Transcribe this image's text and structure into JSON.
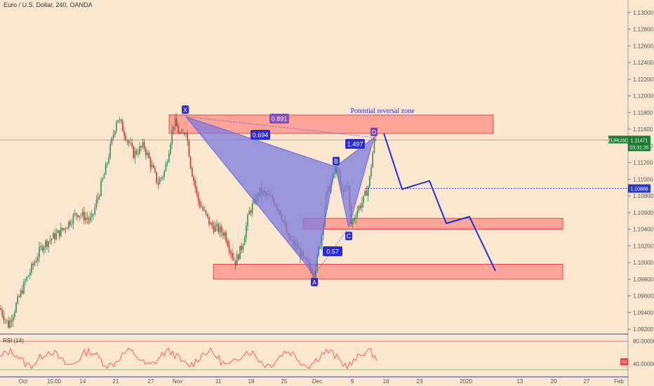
{
  "header": {
    "symbol_title": "Euro / U.S. Dollar, 240, OANDA"
  },
  "colors": {
    "background": "#fbe7cf",
    "candle_up": "#2e8b57",
    "candle_down": "#c0392b",
    "pattern_fill": "#7b7be0",
    "pattern_stroke": "#6a6ad8",
    "zone_fill": "#ff6b6b",
    "projection": "#1f2fd6",
    "price_badge": "#1e7b34",
    "level_badge": "#2b3ac8",
    "rsi_line": "#ff5a5a"
  },
  "chart_data": {
    "type": "candlestick",
    "symbol": "EURUSD",
    "timeframe": "240",
    "y_range": [
      1.0915,
      1.1315
    ],
    "y_ticks": [
      "1.13000",
      "1.12800",
      "1.12600",
      "1.12400",
      "1.12200",
      "1.12000",
      "1.11800",
      "1.11600",
      "1.11400",
      "1.11200",
      "1.11000",
      "1.10800",
      "1.10600",
      "1.10400",
      "1.10200",
      "1.10000",
      "1.09800",
      "1.09600",
      "1.09400",
      "1.09200"
    ],
    "x_ticks": [
      "Oct",
      "15:00",
      "14",
      "21",
      "27",
      "Nov",
      "11",
      "18",
      "25",
      "Dec",
      "9",
      "16",
      "23",
      "2020",
      "13",
      "20",
      "27",
      "Feb"
    ],
    "key_prices": {
      "start": 1.094,
      "october_high": 1.1178,
      "X": 1.1175,
      "A": 1.0985,
      "B": 1.1115,
      "C": 1.1042,
      "D": 1.115,
      "current": 1.11471
    },
    "harmonic_pattern": {
      "points": [
        "X",
        "A",
        "B",
        "C",
        "D"
      ],
      "ratios": {
        "XD": "0.891",
        "XB": "0.694",
        "AC": "0.57",
        "BD": "1.497"
      }
    },
    "zones": [
      {
        "name": "Potential reversal zone",
        "from": 1.1155,
        "to": 1.1177
      },
      {
        "name": "",
        "from": 1.104,
        "to": 1.1053
      },
      {
        "name": "",
        "from": 1.098,
        "to": 1.0998
      }
    ],
    "projection_path": [
      1.1155,
      1.1088,
      1.1098,
      1.1047,
      1.1055,
      1.099
    ],
    "price_labels": {
      "ticker": "EURUSD",
      "current": "1.11471",
      "countdown": "03:31:35",
      "level": "1.10888"
    },
    "rsi": {
      "label": "RSI (14)",
      "ticks": [
        "80.00000",
        "40.00000"
      ],
      "badge": "RSI"
    }
  },
  "annotations": {
    "reversal_zone_title": "Potential reversal zone",
    "point_labels": {
      "X": "X",
      "A": "A",
      "B": "B",
      "C": "C",
      "D": "D"
    }
  }
}
